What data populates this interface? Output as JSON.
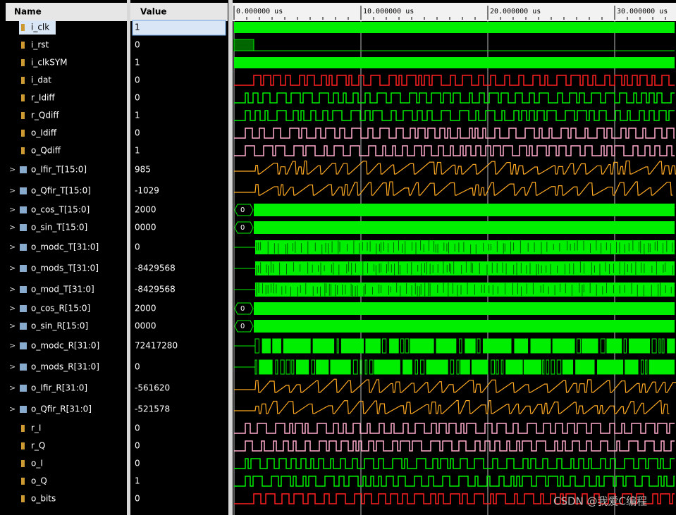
{
  "header": {
    "name": "Name",
    "value": "Value"
  },
  "ruler": {
    "labels": [
      "0.000000 us",
      "10.000000 us",
      "20.000000 us",
      "30.000000 us"
    ]
  },
  "signals": [
    {
      "name": "i_clk",
      "value": "1"
    },
    {
      "name": "i_rst",
      "value": "0"
    },
    {
      "name": "i_clkSYM",
      "value": "1"
    },
    {
      "name": "i_dat",
      "value": "0"
    },
    {
      "name": "r_Idiff",
      "value": "0"
    },
    {
      "name": "r_Qdiff",
      "value": "1"
    },
    {
      "name": "o_Idiff",
      "value": "0"
    },
    {
      "name": "o_Qdiff",
      "value": "1"
    },
    {
      "name": "o_Ifir_T[15:0]",
      "value": "985"
    },
    {
      "name": "o_Qfir_T[15:0]",
      "value": "-1029"
    },
    {
      "name": "o_cos_T[15:0]",
      "value": "2000",
      "wave_label": "0"
    },
    {
      "name": "o_sin_T[15:0]",
      "value": "0000",
      "wave_label": "0"
    },
    {
      "name": "o_modc_T[31:0]",
      "value": "0"
    },
    {
      "name": "o_mods_T[31:0]",
      "value": "-8429568"
    },
    {
      "name": "o_mod_T[31:0]",
      "value": "-8429568"
    },
    {
      "name": "o_cos_R[15:0]",
      "value": "2000",
      "wave_label": "0"
    },
    {
      "name": "o_sin_R[15:0]",
      "value": "0000",
      "wave_label": "0"
    },
    {
      "name": "o_modc_R[31:0]",
      "value": "72417280"
    },
    {
      "name": "o_mods_R[31:0]",
      "value": "0"
    },
    {
      "name": "o_Ifir_R[31:0]",
      "value": "-561620"
    },
    {
      "name": "o_Qfir_R[31:0]",
      "value": "-521578"
    },
    {
      "name": "r_I",
      "value": "0"
    },
    {
      "name": "r_Q",
      "value": "0"
    },
    {
      "name": "o_I",
      "value": "0"
    },
    {
      "name": "o_Q",
      "value": "1"
    },
    {
      "name": "o_bits",
      "value": "0"
    }
  ],
  "watermark": "CSDN @我爱C编程"
}
